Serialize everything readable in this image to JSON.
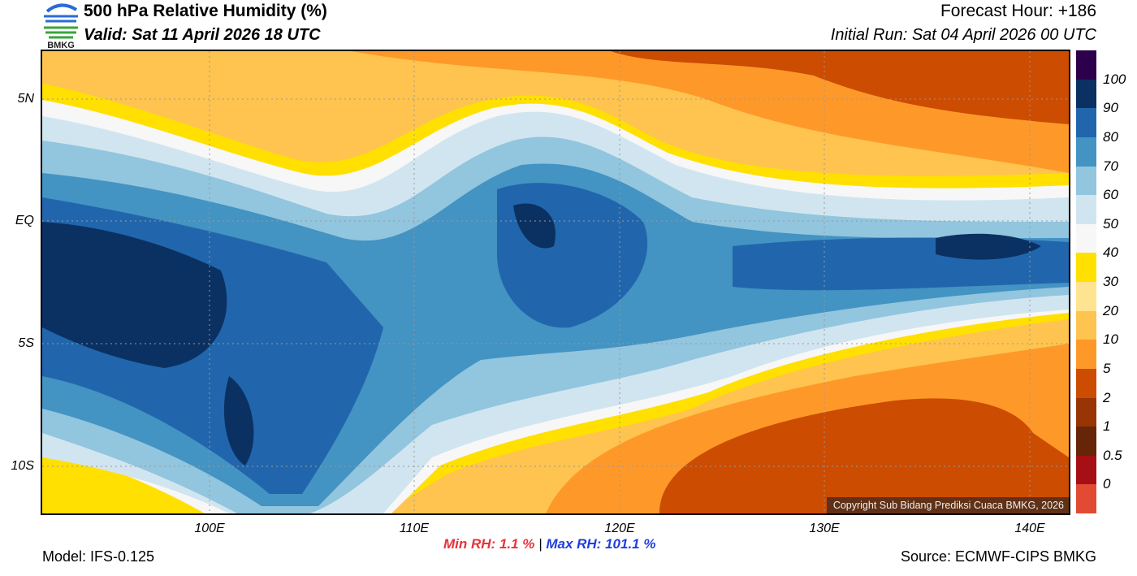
{
  "header": {
    "title": "500 hPa Relative Humidity (%)",
    "valid": "Valid: Sat 11 April 2026 18 UTC",
    "forecast_hour": "Forecast Hour: +186",
    "initial_run": "Initial Run: Sat 04 April 2026 00 UTC",
    "logo_text": "BMKG"
  },
  "axes": {
    "lat_labels": [
      "5N",
      "EQ",
      "5S",
      "10S"
    ],
    "lon_labels": [
      "100E",
      "110E",
      "120E",
      "130E",
      "140E"
    ]
  },
  "legend": {
    "labels": [
      "100",
      "90",
      "80",
      "70",
      "60",
      "50",
      "40",
      "30",
      "20",
      "10",
      "5",
      "2",
      "1",
      "0.5",
      "0"
    ],
    "colors": [
      "#2d004b",
      "#0b3163",
      "#2166ac",
      "#4393c3",
      "#92c5de",
      "#d1e5f0",
      "#f7f7f7",
      "#ffe000",
      "#fee391",
      "#fec44f",
      "#fe9929",
      "#cc4c02",
      "#993404",
      "#662506",
      "#a50f15",
      "#e34a33"
    ]
  },
  "stats": {
    "min_label": "Min RH:",
    "min_value": "1.1 %",
    "sep": "|",
    "max_label": "Max RH:",
    "max_value": "101.1 %"
  },
  "footer": {
    "model": "Model: IFS-0.125",
    "source": "Source: ECMWF-CIPS BMKG",
    "copyright": "Copyright Sub Bidang Prediksi Cuaca BMKG, 2026"
  }
}
